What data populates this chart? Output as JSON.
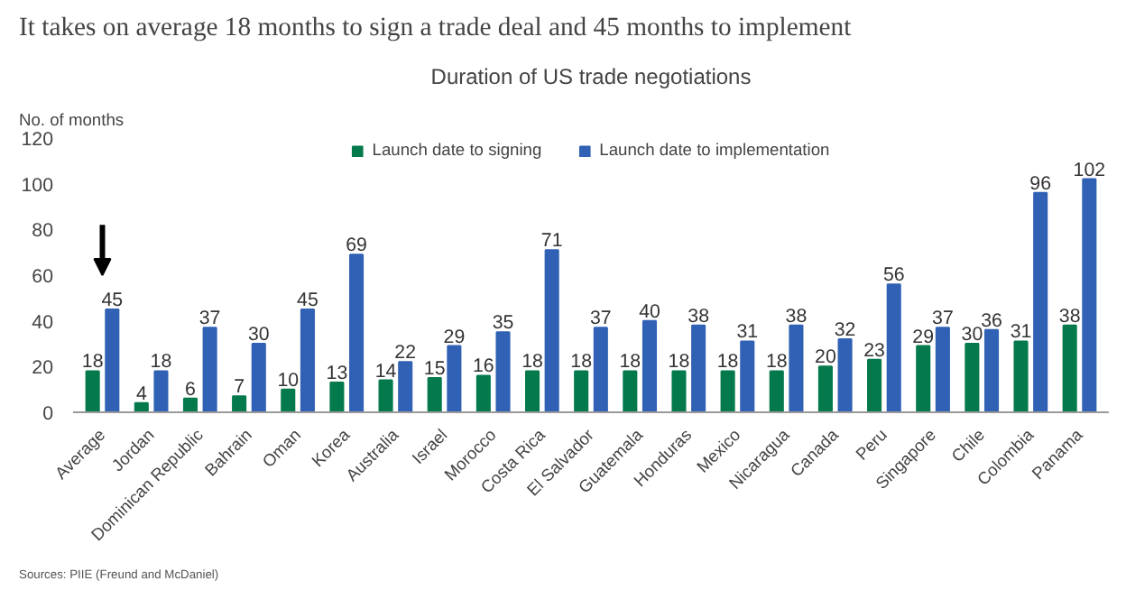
{
  "chart_data": {
    "type": "bar",
    "title": "It takes on average 18 months to sign a trade deal and 45 months to implement",
    "subtitle": "Duration of US trade negotiations",
    "ylabel": "No. of months",
    "categories": [
      "Average",
      "Jordan",
      "Dominican Republic",
      "Bahrain",
      "Oman",
      "Korea",
      "Australia",
      "Israel",
      "Morocco",
      "Costa Rica",
      "El Salvador",
      "Guatemala",
      "Honduras",
      "Mexico",
      "Nicaragua",
      "Canada",
      "Peru",
      "Singapore",
      "Chile",
      "Colombia",
      "Panama"
    ],
    "series": [
      {
        "name": "Launch date to signing",
        "color": "#047a4c",
        "values": [
          18,
          4,
          6,
          7,
          10,
          13,
          14,
          15,
          16,
          18,
          18,
          18,
          18,
          18,
          18,
          20,
          23,
          29,
          30,
          31,
          38
        ]
      },
      {
        "name": "Launch date to implementation",
        "color": "#3061b4",
        "values": [
          45,
          18,
          37,
          30,
          45,
          69,
          22,
          29,
          35,
          71,
          37,
          40,
          38,
          31,
          38,
          32,
          56,
          37,
          36,
          96,
          102
        ]
      }
    ],
    "ylim": [
      0,
      120
    ],
    "yticks": [
      0,
      20,
      40,
      60,
      80,
      100,
      120
    ],
    "grid": false,
    "legend": "top",
    "data_labels": true,
    "annotations": [
      "Sources: PIIE (Freund and McDaniel)"
    ]
  }
}
